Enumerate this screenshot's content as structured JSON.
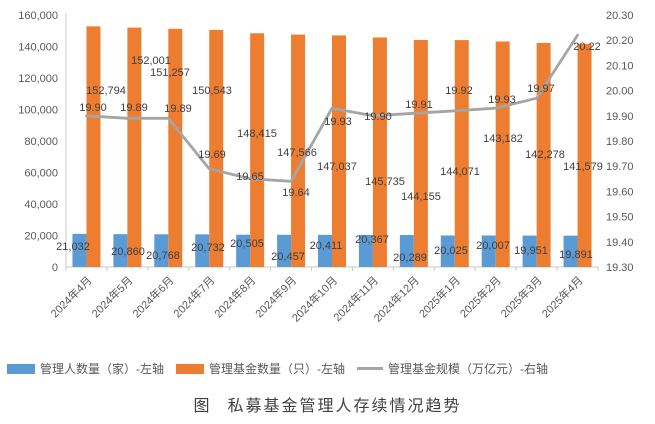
{
  "chart_data": {
    "type": "combo-bar-line",
    "title": "",
    "categories": [
      "2024年4月",
      "2024年5月",
      "2024年6月",
      "2024年7月",
      "2024年8月",
      "2024年9月",
      "2024年10月",
      "2024年11月",
      "2024年12月",
      "2025年1月",
      "2025年2月",
      "2025年3月",
      "2025年4月"
    ],
    "series": [
      {
        "name": "管理人数量（家）-左轴",
        "type": "bar",
        "axis": "left",
        "color": "#5B9BD5",
        "values": [
          21032,
          20860,
          20768,
          20732,
          20505,
          20457,
          20411,
          20367,
          20289,
          20025,
          20007,
          19951,
          19891
        ]
      },
      {
        "name": "管理基金数量（只）-左轴",
        "type": "bar",
        "axis": "left",
        "color": "#ED7D31",
        "values": [
          152794,
          152001,
          151257,
          150543,
          148415,
          147566,
          147037,
          145735,
          144155,
          144071,
          143182,
          142278,
          141579
        ]
      },
      {
        "name": "管理基金规模（万亿元）-右轴",
        "type": "line",
        "axis": "right",
        "color": "#A5A5A5",
        "values": [
          19.9,
          19.89,
          19.89,
          19.69,
          19.65,
          19.64,
          19.93,
          19.9,
          19.91,
          19.92,
          19.93,
          19.97,
          20.22
        ]
      }
    ],
    "left_axis": {
      "min": 0,
      "max": 160000,
      "step": 20000,
      "tick_labels": [
        "0",
        "20,000",
        "40,000",
        "60,000",
        "80,000",
        "100,000",
        "120,000",
        "140,000",
        "160,000"
      ]
    },
    "right_axis": {
      "min": 19.3,
      "max": 20.3,
      "step": 0.1,
      "tick_labels": [
        "19.30",
        "19.40",
        "19.50",
        "19.60",
        "19.70",
        "19.80",
        "19.90",
        "20.00",
        "20.10",
        "20.20",
        "20.30"
      ]
    },
    "grid": false,
    "data_labels": true,
    "legend_position": "bottom"
  },
  "legend": {
    "items": [
      {
        "label": "管理人数量（家）-左轴",
        "color": "#5B9BD5",
        "marker": "rect"
      },
      {
        "label": "管理基金数量（只）-左轴",
        "color": "#ED7D31",
        "marker": "rect"
      },
      {
        "label": "管理基金规模（万亿元）-右轴",
        "color": "#A5A5A5",
        "marker": "line"
      }
    ]
  },
  "caption": {
    "prefix": "图",
    "title": "私募基金管理人存续情况趋势"
  },
  "colors": {
    "axis_text": "#595959",
    "label_text": "#404040",
    "axis_line": "#c9c9c9"
  }
}
